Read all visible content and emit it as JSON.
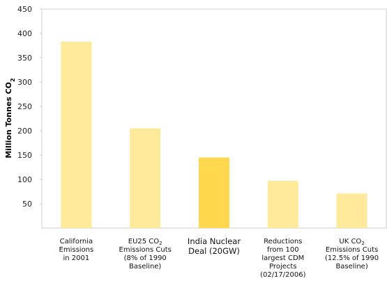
{
  "chart_data": {
    "type": "bar",
    "title": "",
    "xlabel": "",
    "ylabel": "Million Tonnes CO",
    "ylabel_subscript": "2",
    "ylim": [
      0,
      450
    ],
    "yticks": [
      50,
      100,
      150,
      200,
      250,
      300,
      350,
      400,
      450
    ],
    "grid": false,
    "categories": [
      {
        "lines": [
          "California",
          "Emissions",
          "in 2001"
        ]
      },
      {
        "lines": [
          "EU25 CO",
          "Emissions Cuts",
          "(8% of 1990",
          "Baseline)"
        ],
        "sub": "2"
      },
      {
        "lines": [
          "India Nuclear",
          "Deal (20GW)"
        ]
      },
      {
        "lines": [
          "Reductions",
          "from 100",
          "largest CDM",
          "Projects",
          "(02/17/2006)"
        ]
      },
      {
        "lines": [
          "UK CO",
          "Emissions Cuts",
          "(12.5% of 1990",
          "Baseline)"
        ],
        "sub": "2"
      }
    ],
    "values": [
      383,
      205,
      145,
      97,
      71
    ],
    "colors": [
      "#ffe99a",
      "#ffe99a",
      "#ffd84d",
      "#ffe99a",
      "#ffe99a"
    ],
    "highlight_index": 2
  }
}
